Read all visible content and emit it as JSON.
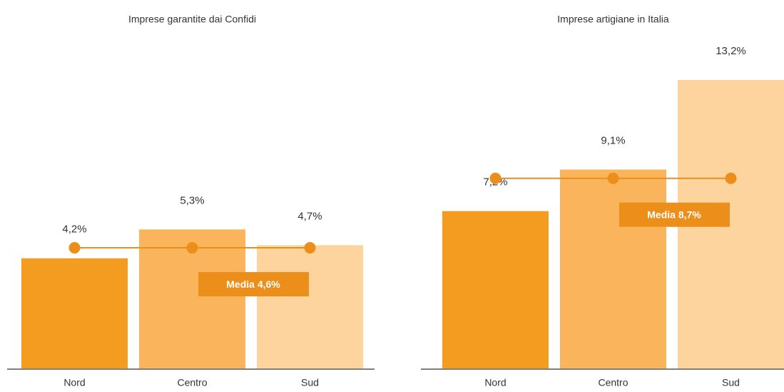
{
  "chart_data": [
    {
      "type": "bar",
      "title": "Imprese garantite dai Confidi",
      "categories": [
        "Nord",
        "Centro",
        "Sud"
      ],
      "values": [
        4.2,
        5.3,
        4.7
      ],
      "value_labels": [
        "4,2%",
        "5,3%",
        "4,7%"
      ],
      "colors": [
        "#f39c1f",
        "#f9b45c",
        "#fdd49e"
      ],
      "average": 4.6,
      "average_label": "Media 4,6%",
      "average_color": "#ec8f1a",
      "ylim": [
        0,
        11
      ]
    },
    {
      "type": "bar",
      "title": "Imprese artigiane in Italia",
      "categories": [
        "Nord",
        "Centro",
        "Sud"
      ],
      "values": [
        7.2,
        9.1,
        13.2
      ],
      "value_labels": [
        "7,2%",
        "9,1%",
        "13,2%"
      ],
      "colors": [
        "#f39c1f",
        "#f9b45c",
        "#fdd49e"
      ],
      "average": 8.7,
      "average_label": "Media 8,7%",
      "average_color": "#ec8f1a",
      "ylim": [
        0,
        13.2
      ]
    }
  ]
}
